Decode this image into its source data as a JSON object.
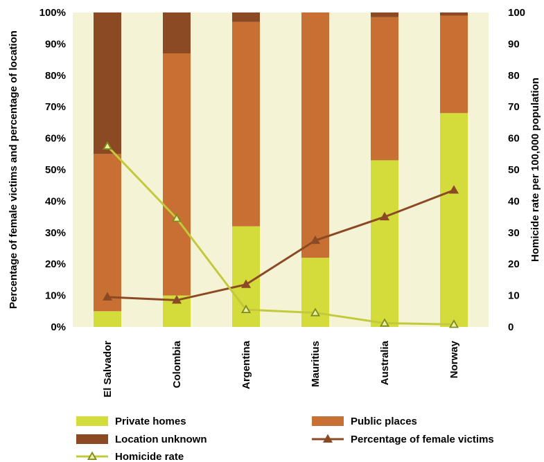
{
  "chart_data": {
    "type": "bar",
    "stacked": true,
    "categories": [
      "El Salvador",
      "Colombia",
      "Argentina",
      "Mauritius",
      "Australia",
      "Norway"
    ],
    "series": [
      {
        "name": "Private homes",
        "axis": "left",
        "kind": "bar",
        "color": "#d4dc3c",
        "values": [
          5,
          10,
          32,
          22,
          53,
          68
        ]
      },
      {
        "name": "Public places",
        "axis": "left",
        "kind": "bar",
        "color": "#c86f34",
        "values": [
          50,
          77,
          65,
          78,
          45.5,
          31
        ]
      },
      {
        "name": "Location unknown",
        "axis": "left",
        "kind": "bar",
        "color": "#8b4a24",
        "values": [
          45,
          13,
          3,
          0,
          1.5,
          1
        ]
      },
      {
        "name": "Percentage of female victims",
        "axis": "left",
        "kind": "line",
        "marker": "triangle",
        "color": "#8b4a24",
        "values": [
          9.5,
          8.5,
          13.5,
          27.5,
          35,
          43.5
        ]
      },
      {
        "name": "Homicide rate",
        "axis": "right",
        "kind": "line",
        "marker": "triangle-hollow",
        "color": "#c2c93a",
        "values": [
          57.5,
          34.5,
          5.5,
          4.5,
          1.2,
          0.8
        ]
      }
    ],
    "ylabel": "Percentage of female victims and percentage of location",
    "y2label": "Homicide rate per 100,000 population",
    "ylim": [
      0,
      100
    ],
    "y2lim": [
      0,
      100
    ],
    "yticks": [
      "0%",
      "10%",
      "20%",
      "30%",
      "40%",
      "50%",
      "60%",
      "70%",
      "80%",
      "90%",
      "100%"
    ],
    "y2ticks": [
      "0",
      "10",
      "20",
      "30",
      "40",
      "50",
      "60",
      "70",
      "80",
      "90",
      "100"
    ],
    "plot_background": "#f5f3d6",
    "grid": false,
    "legend_position": "bottom"
  }
}
